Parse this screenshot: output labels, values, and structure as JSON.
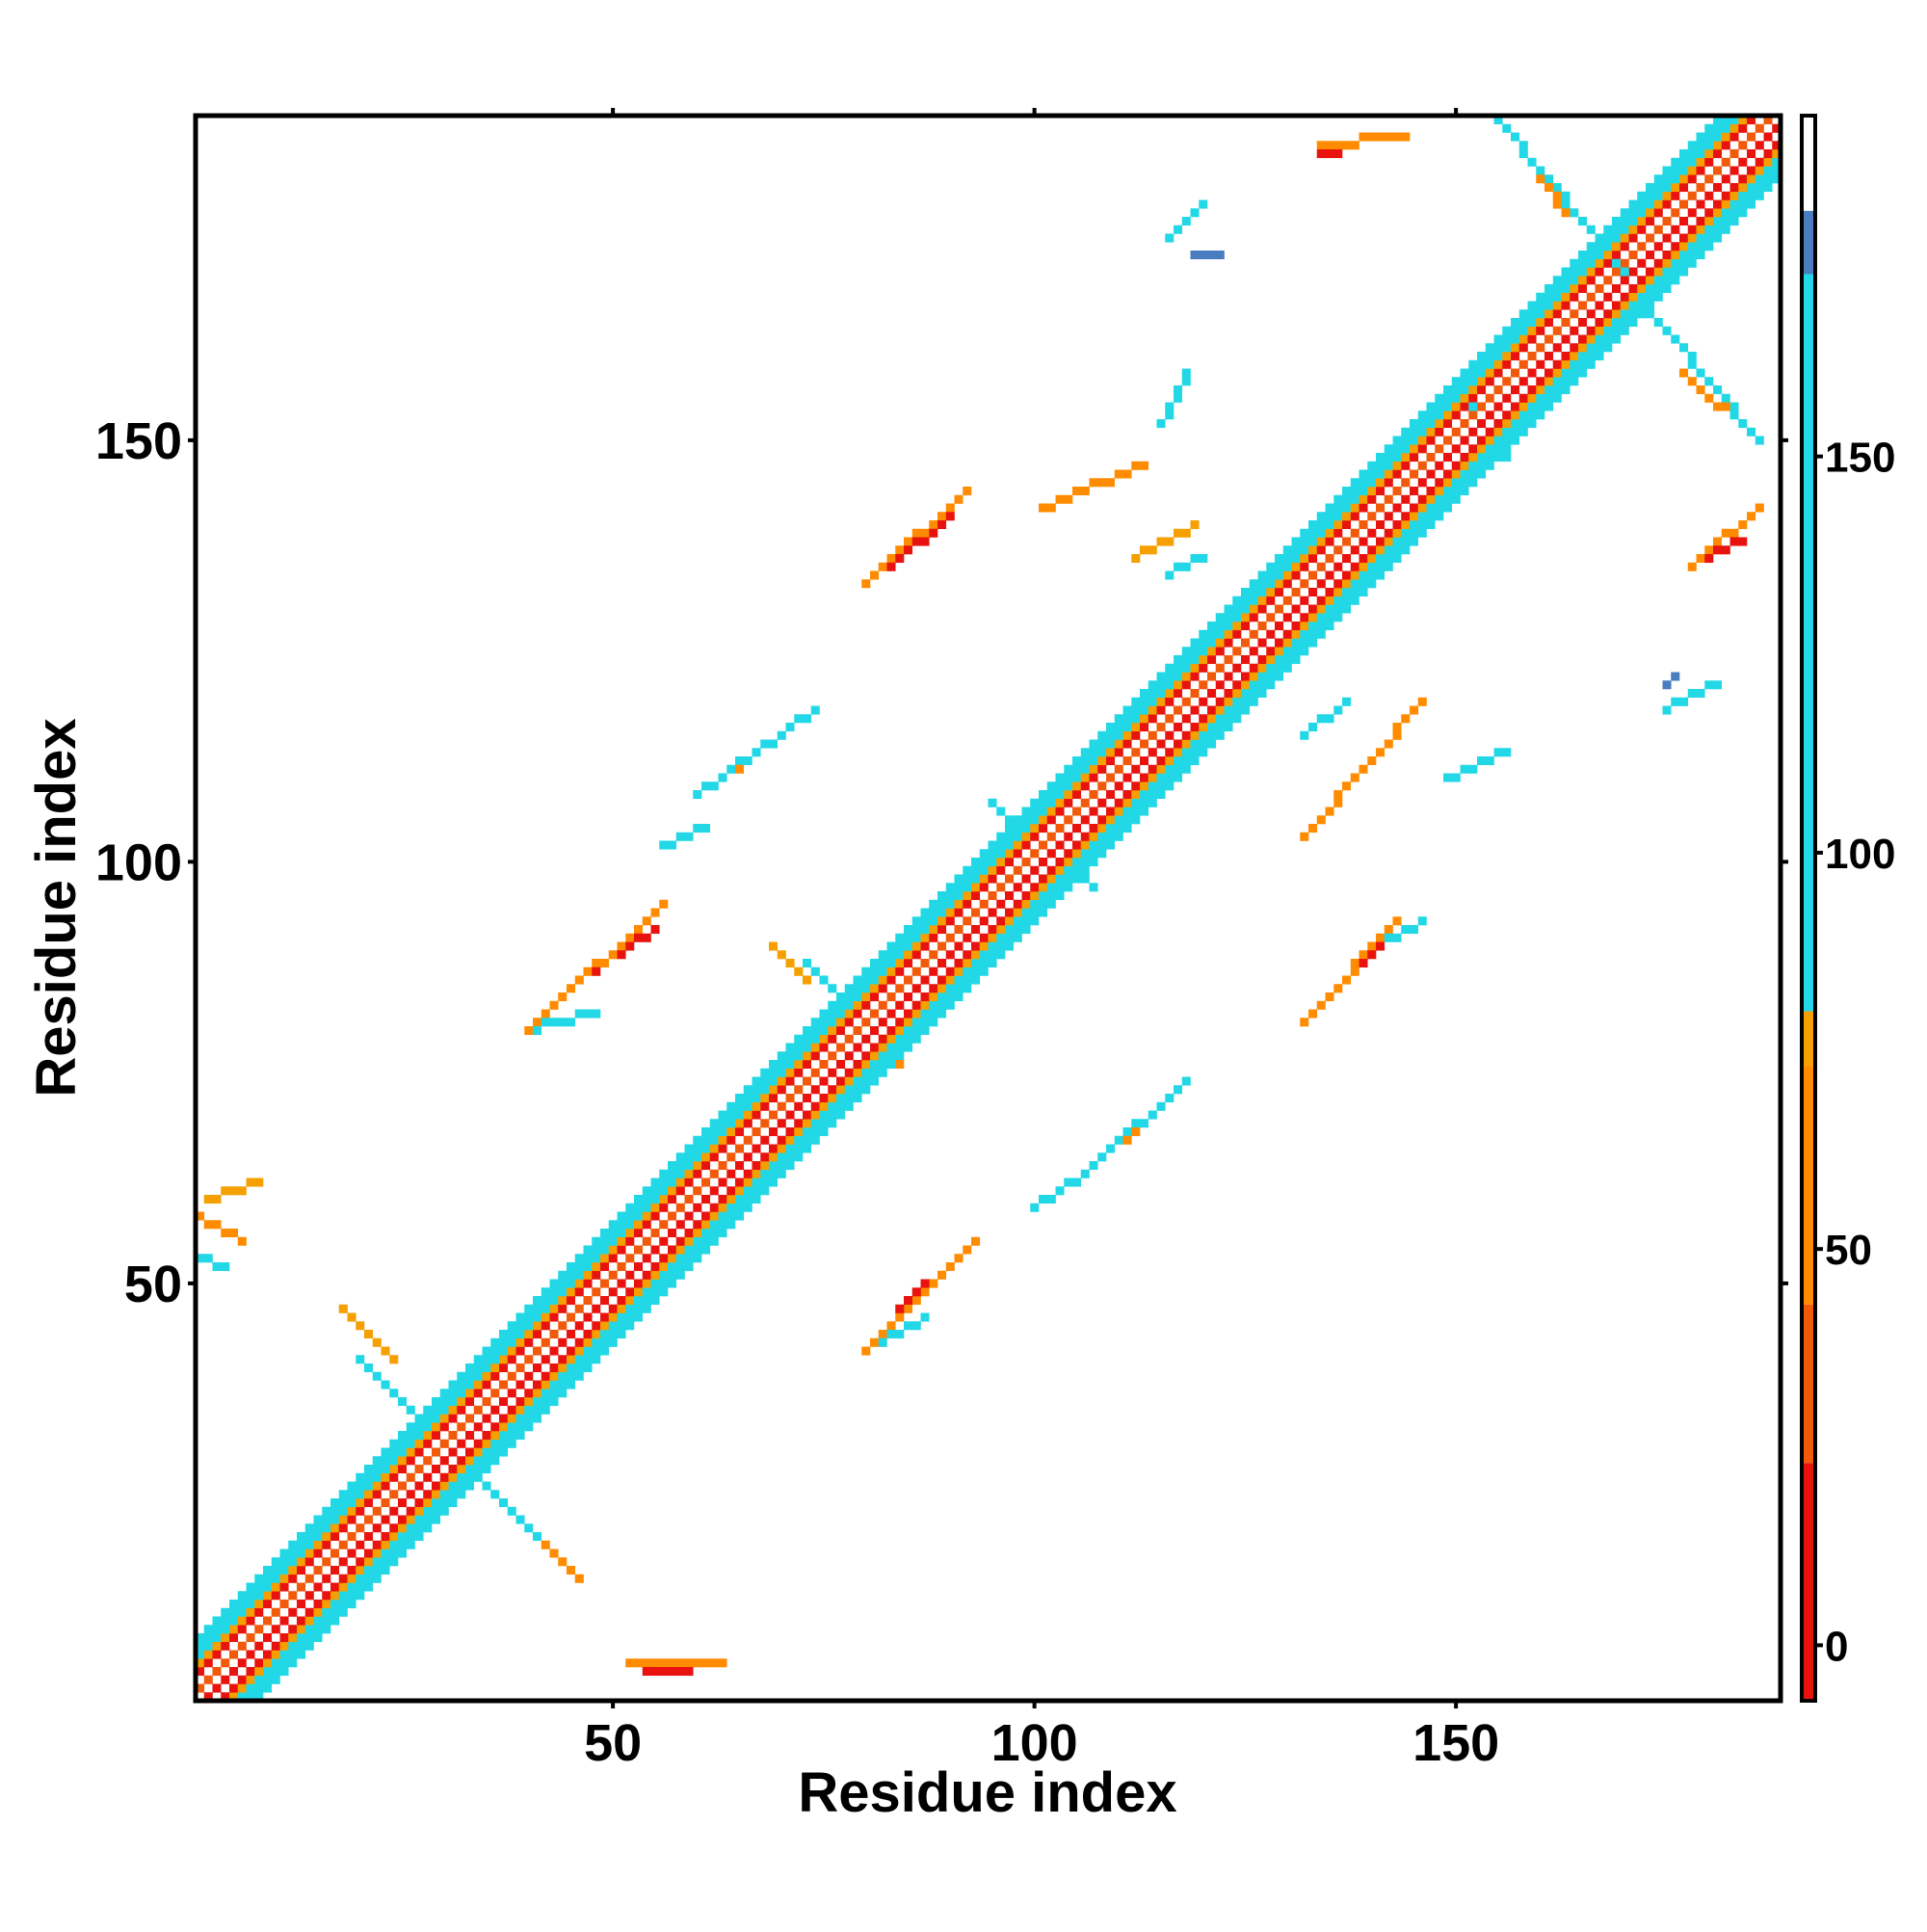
{
  "chart_data": {
    "type": "heatmap",
    "title": "",
    "xlabel": "Residue index",
    "ylabel": "Residue index",
    "x_range": [
      1,
      188
    ],
    "y_range": [
      1,
      188
    ],
    "xticks": [
      50,
      100,
      150
    ],
    "yticks": [
      50,
      100,
      150
    ],
    "colorbar": {
      "ticks": [
        0,
        50,
        100,
        150
      ],
      "range": [
        -7,
        193
      ],
      "bands": [
        {
          "from": -7,
          "to": 23,
          "color": "#e8130e"
        },
        {
          "from": 23,
          "to": 43,
          "color": "#f05a0a"
        },
        {
          "from": 43,
          "to": 73,
          "color": "#ff8c00"
        },
        {
          "from": 73,
          "to": 80,
          "color": "#f5a000"
        },
        {
          "from": 80,
          "to": 173,
          "color": "#22d8e6"
        },
        {
          "from": 173,
          "to": 181,
          "color": "#4a7dbf"
        },
        {
          "from": 181,
          "to": 193,
          "color": "#ffffff"
        }
      ]
    },
    "grid": false,
    "colors": {
      "red": "#e8130e",
      "orange_red": "#f05a0a",
      "orange": "#ff8c00",
      "amber": "#f5a000",
      "cyan": "#22d8e6",
      "blue": "#4a7dbf"
    },
    "diagonal_band": {
      "x_from": 1,
      "x_to": 188,
      "half_width": 7
    },
    "contact_segments": [
      {
        "x": [
          20,
          41
        ],
        "y": [
          41,
          20
        ],
        "color": "cyan"
      },
      {
        "x": [
          21,
          40
        ],
        "y": [
          40,
          21
        ],
        "color": "blue"
      },
      {
        "x": [
          18,
          24
        ],
        "y": [
          47,
          41
        ],
        "color": "amber"
      },
      {
        "x": [
          38,
          46
        ],
        "y": [
          23,
          15
        ],
        "color": "orange"
      },
      {
        "x": [
          73,
          84
        ],
        "y": [
          88,
          77
        ],
        "color": "cyan"
      },
      {
        "x": [
          69,
          73
        ],
        "y": [
          90,
          86
        ],
        "color": "amber"
      },
      {
        "x": [
          80,
          84
        ],
        "y": [
          79,
          76
        ],
        "color": "orange"
      },
      {
        "x": [
          95,
          107
        ],
        "y": [
          107,
          97
        ],
        "color": "cyan"
      },
      {
        "x": [
          150,
          156
        ],
        "y": [
          156,
          148
        ],
        "color": "cyan"
      },
      {
        "x": [
          155,
          170
        ],
        "y": [
          188,
          170
        ],
        "color": "cyan"
      },
      {
        "x": [
          157,
          163
        ],
        "y": [
          186,
          177
        ],
        "color": "orange"
      },
      {
        "x": [
          170,
          186
        ],
        "y": [
          169,
          150
        ],
        "color": "cyan"
      },
      {
        "x": [
          177,
          186
        ],
        "y": [
          158,
          150
        ],
        "color": "orange"
      },
      {
        "x": [
          52,
          63
        ],
        "y": [
          5,
          5
        ],
        "color": "orange"
      },
      {
        "x": [
          54,
          59
        ],
        "y": [
          4,
          4
        ],
        "color": "red"
      },
      {
        "x": [
          1,
          6
        ],
        "y": [
          58,
          55
        ],
        "color": "orange"
      },
      {
        "x": [
          2,
          8
        ],
        "y": [
          60,
          62
        ],
        "color": "amber"
      },
      {
        "x": [
          1,
          4
        ],
        "y": [
          53,
          52
        ],
        "color": "cyan"
      },
      {
        "x": [
          40,
          56
        ],
        "y": [
          80,
          95
        ],
        "color": "orange"
      },
      {
        "x": [
          46,
          55
        ],
        "y": [
          86,
          92
        ],
        "color": "red"
      },
      {
        "x": [
          40,
          48
        ],
        "y": [
          80,
          82
        ],
        "color": "cyan"
      },
      {
        "x": [
          56,
          61
        ],
        "y": [
          102,
          104
        ],
        "color": "cyan"
      },
      {
        "x": [
          60,
          74
        ],
        "y": [
          108,
          118
        ],
        "color": "cyan"
      },
      {
        "x": [
          63,
          70
        ],
        "y": [
          110,
          115
        ],
        "color": "orange"
      },
      {
        "x": [
          80,
          92
        ],
        "y": [
          133,
          144
        ],
        "color": "orange"
      },
      {
        "x": [
          83,
          90
        ],
        "y": [
          135,
          141
        ],
        "color": "red"
      },
      {
        "x": [
          86,
          92
        ],
        "y": [
          138,
          144
        ],
        "color": "cyan"
      },
      {
        "x": [
          101,
          113
        ],
        "y": [
          142,
          147
        ],
        "color": "orange"
      },
      {
        "x": [
          112,
          119
        ],
        "y": [
          136,
          140
        ],
        "color": "amber"
      },
      {
        "x": [
          116,
          120
        ],
        "y": [
          134,
          136
        ],
        "color": "cyan"
      },
      {
        "x": [
          116,
          120
        ],
        "y": [
          174,
          178
        ],
        "color": "cyan"
      },
      {
        "x": [
          119,
          122
        ],
        "y": [
          172,
          172
        ],
        "color": "blue"
      },
      {
        "x": [
          134,
          144
        ],
        "y": [
          185,
          186
        ],
        "color": "orange"
      },
      {
        "x": [
          134,
          136
        ],
        "y": [
          184,
          184
        ],
        "color": "red"
      },
      {
        "x": [
          80,
          93
        ],
        "y": [
          42,
          55
        ],
        "color": "orange"
      },
      {
        "x": [
          84,
          90
        ],
        "y": [
          47,
          52
        ],
        "color": "red"
      },
      {
        "x": [
          80,
          87
        ],
        "y": [
          42,
          46
        ],
        "color": "cyan"
      },
      {
        "x": [
          100,
          106
        ],
        "y": [
          59,
          63
        ],
        "color": "cyan"
      },
      {
        "x": [
          107,
          118
        ],
        "y": [
          64,
          74
        ],
        "color": "cyan"
      },
      {
        "x": [
          111,
          116
        ],
        "y": [
          67,
          72
        ],
        "color": "orange"
      },
      {
        "x": [
          132,
          143
        ],
        "y": [
          81,
          93
        ],
        "color": "orange"
      },
      {
        "x": [
          135,
          141
        ],
        "y": [
          84,
          90
        ],
        "color": "red"
      },
      {
        "x": [
          138,
          146
        ],
        "y": [
          88,
          93
        ],
        "color": "cyan"
      },
      {
        "x": [
          132,
          146
        ],
        "y": [
          103,
          119
        ],
        "color": "orange"
      },
      {
        "x": [
          132,
          137
        ],
        "y": [
          115,
          119
        ],
        "color": "cyan"
      },
      {
        "x": [
          149,
          156
        ],
        "y": [
          110,
          113
        ],
        "color": "cyan"
      },
      {
        "x": [
          175,
          181
        ],
        "y": [
          118,
          121
        ],
        "color": "cyan"
      },
      {
        "x": [
          175,
          176
        ],
        "y": [
          121,
          122
        ],
        "color": "blue"
      },
      {
        "x": [
          178,
          186
        ],
        "y": [
          135,
          142
        ],
        "color": "orange"
      },
      {
        "x": [
          180,
          184
        ],
        "y": [
          136,
          138
        ],
        "color": "red"
      },
      {
        "x": [
          115,
          118
        ],
        "y": [
          152,
          158
        ],
        "color": "cyan"
      }
    ]
  }
}
